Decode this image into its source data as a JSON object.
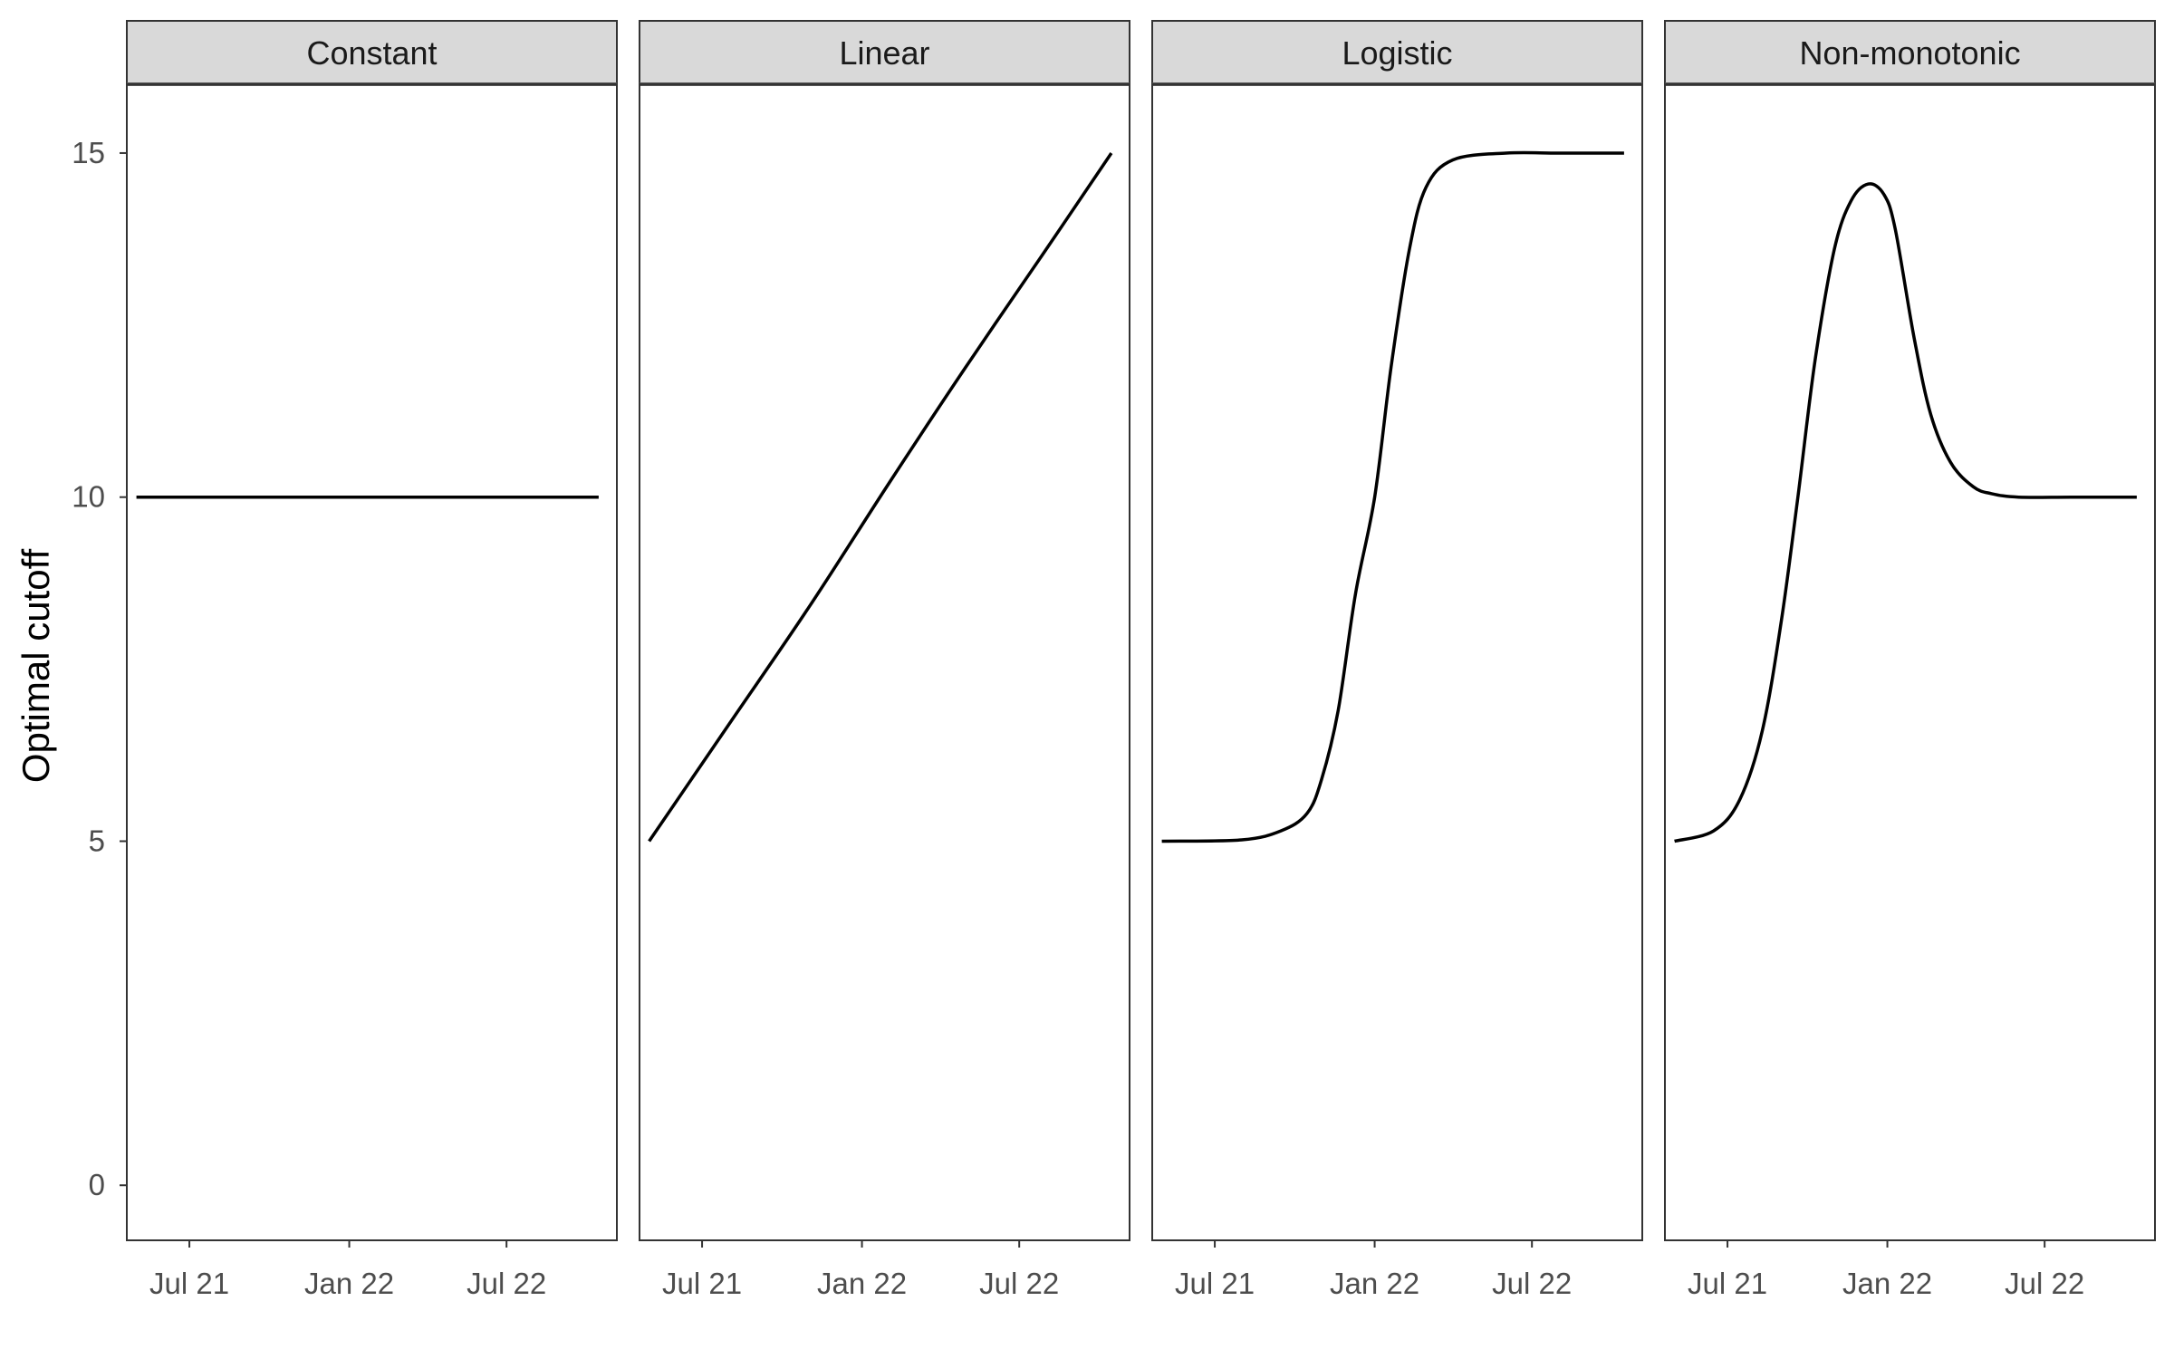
{
  "chart_data": {
    "type": "line",
    "facet_layout": "1 row x 4 columns, shared y-axis",
    "ylabel": "Optimal cutoff",
    "xlabel": "",
    "ylim": [
      -0.8,
      16.0
    ],
    "xlim": [
      "2021-04-20",
      "2022-11-05"
    ],
    "y_ticks": [
      0,
      5,
      10,
      15
    ],
    "x_ticks": [
      {
        "date": "2021-07-01",
        "label": "Jul 21"
      },
      {
        "date": "2022-01-01",
        "label": "Jan 22"
      },
      {
        "date": "2022-07-01",
        "label": "Jul 22"
      }
    ],
    "grid": false,
    "legend": "none",
    "colors": {
      "line": "#000000",
      "strip_fill": "#d9d9d9",
      "panel_border": "#333333"
    },
    "facets": [
      {
        "name": "Constant",
        "x": [
          "2021-05-01",
          "2021-08-01",
          "2021-11-01",
          "2022-02-01",
          "2022-05-01",
          "2022-08-01",
          "2022-10-15"
        ],
        "y": [
          10,
          10,
          10,
          10,
          10,
          10,
          10
        ]
      },
      {
        "name": "Linear",
        "x": [
          "2021-05-01",
          "2021-08-01",
          "2021-11-01",
          "2022-02-01",
          "2022-05-01",
          "2022-08-01",
          "2022-10-15"
        ],
        "y": [
          5.0,
          6.7,
          8.4,
          10.2,
          11.9,
          13.6,
          15.0
        ]
      },
      {
        "name": "Logistic",
        "x": [
          "2021-05-01",
          "2021-08-01",
          "2021-09-15",
          "2021-10-15",
          "2021-11-01",
          "2021-11-20",
          "2021-12-10",
          "2022-01-01",
          "2022-01-20",
          "2022-02-10",
          "2022-03-01",
          "2022-04-01",
          "2022-06-01",
          "2022-08-01",
          "2022-10-15"
        ],
        "y": [
          5.0,
          5.02,
          5.15,
          5.4,
          5.9,
          6.9,
          8.6,
          10.0,
          11.9,
          13.6,
          14.5,
          14.9,
          15.0,
          15.0,
          15.0
        ]
      },
      {
        "name": "Non-monotonic",
        "x": [
          "2021-05-01",
          "2021-06-15",
          "2021-07-15",
          "2021-08-10",
          "2021-09-01",
          "2021-09-20",
          "2021-10-10",
          "2021-11-01",
          "2021-11-20",
          "2021-12-10",
          "2021-12-28",
          "2022-01-10",
          "2022-02-01",
          "2022-02-20",
          "2022-03-15",
          "2022-04-10",
          "2022-05-01",
          "2022-06-01",
          "2022-08-01",
          "2022-10-15"
        ],
        "y": [
          5.0,
          5.15,
          5.6,
          6.6,
          8.2,
          10.0,
          12.0,
          13.6,
          14.3,
          14.55,
          14.4,
          13.9,
          12.3,
          11.2,
          10.5,
          10.15,
          10.05,
          10.0,
          10.0,
          10.0
        ]
      }
    ]
  }
}
